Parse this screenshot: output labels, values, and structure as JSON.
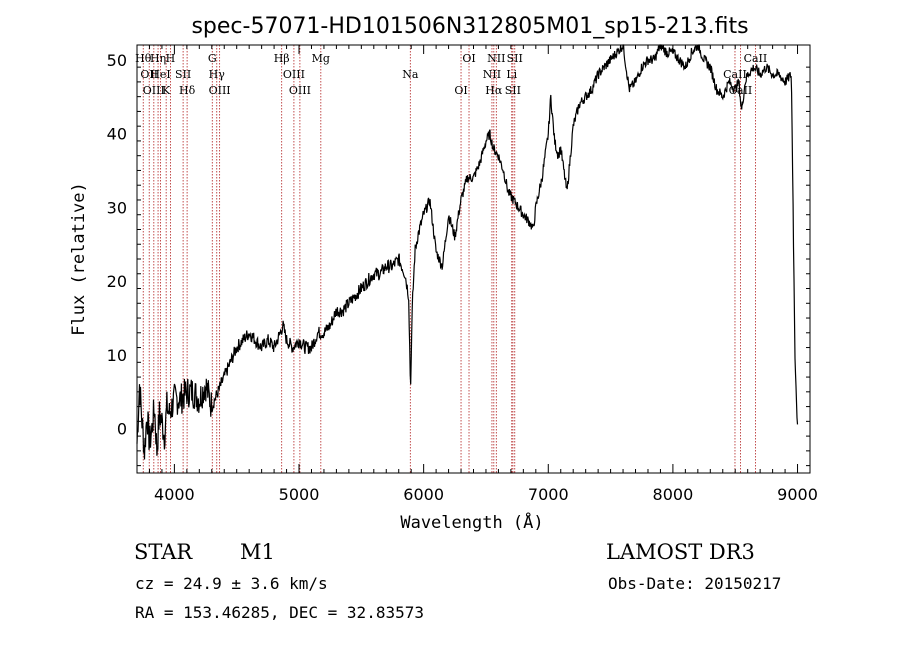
{
  "chart_data": {
    "type": "line",
    "title": "spec-57071-HD101506N312805M01_sp15-213.fits",
    "xlabel": "Wavelength (Å)",
    "ylabel": "Flux (relative)",
    "xlim": [
      3700,
      9100
    ],
    "ylim": [
      -6,
      52
    ],
    "xticks": [
      4000,
      5000,
      6000,
      7000,
      8000,
      9000
    ],
    "yticks": [
      0,
      10,
      20,
      30,
      40,
      50
    ],
    "series": [
      {
        "x": [
          3700,
          3720,
          3740,
          3760,
          3780,
          3800,
          3820,
          3840,
          3860,
          3880,
          3900,
          3920,
          3940,
          3960,
          3980,
          4000,
          4050,
          4100,
          4150,
          4200,
          4250,
          4300,
          4350,
          4400,
          4450,
          4500,
          4550,
          4600,
          4650,
          4700,
          4750,
          4800,
          4850,
          4870,
          4900,
          4950,
          5000,
          5050,
          5100,
          5150,
          5200,
          5250,
          5300,
          5350,
          5400,
          5450,
          5500,
          5550,
          5600,
          5650,
          5700,
          5750,
          5800,
          5850,
          5880,
          5895,
          5900,
          5910,
          5930,
          5950,
          6000,
          6050,
          6100,
          6150,
          6200,
          6250,
          6300,
          6350,
          6400,
          6450,
          6500,
          6530,
          6560,
          6600,
          6640,
          6680,
          6720,
          6760,
          6800,
          6850,
          6880,
          6900,
          6950,
          7000,
          7020,
          7050,
          7080,
          7100,
          7150,
          7200,
          7250,
          7300,
          7350,
          7400,
          7450,
          7500,
          7550,
          7600,
          7650,
          7700,
          7750,
          7800,
          7850,
          7900,
          7950,
          8000,
          8050,
          8100,
          8150,
          8200,
          8250,
          8300,
          8350,
          8400,
          8450,
          8500,
          8530,
          8550,
          8580,
          8600,
          8650,
          8700,
          8750,
          8800,
          8850,
          8900,
          8950,
          8980,
          9000
        ],
        "y": [
          -2,
          6,
          1,
          -3,
          2,
          -2,
          0,
          3,
          -3,
          2,
          1,
          -1,
          3,
          2,
          3,
          4,
          4,
          5,
          5,
          4,
          6,
          3,
          5,
          7,
          9,
          11,
          12,
          13,
          12,
          11,
          12,
          11,
          13,
          14,
          12,
          11,
          12,
          11,
          11,
          13,
          13,
          14,
          16,
          16,
          17,
          18,
          19,
          20,
          21,
          21,
          22,
          22,
          23,
          21,
          18,
          5,
          10,
          17,
          24,
          26,
          29,
          31,
          24,
          22,
          29,
          26,
          31,
          34,
          34,
          36,
          39,
          40,
          38,
          37,
          35,
          32,
          31,
          30,
          29,
          28,
          27,
          30,
          34,
          40,
          45,
          39,
          37,
          38,
          32,
          41,
          44,
          45,
          46,
          48,
          49,
          50,
          51,
          52,
          46,
          47,
          49,
          50,
          50,
          52,
          51,
          51,
          50,
          49,
          51,
          52,
          50,
          49,
          46,
          45,
          47,
          46,
          47,
          43,
          47,
          48,
          49,
          48,
          49,
          48,
          48,
          47,
          48,
          10,
          0
        ]
      }
    ],
    "lines": [
      {
        "x": 3750,
        "label": "Hθ"
      },
      {
        "x": 3798,
        "label": "OII"
      },
      {
        "x": 3835,
        "label": "OIII"
      },
      {
        "x": 3869,
        "label": "Hη"
      },
      {
        "x": 3889,
        "label": "HeI"
      },
      {
        "x": 3934,
        "label": "K"
      },
      {
        "x": 3968,
        "label": "H"
      },
      {
        "x": 4070,
        "label": "SII"
      },
      {
        "x": 4102,
        "label": "Hδ"
      },
      {
        "x": 4304,
        "label": "G"
      },
      {
        "x": 4340,
        "label": "Hγ"
      },
      {
        "x": 4363,
        "label": "OIII"
      },
      {
        "x": 4861,
        "label": "Hβ"
      },
      {
        "x": 4959,
        "label": "OIII"
      },
      {
        "x": 5007,
        "label": "OIII"
      },
      {
        "x": 5175,
        "label": "Mg"
      },
      {
        "x": 5893,
        "label": "Na"
      },
      {
        "x": 6300,
        "label": "OI"
      },
      {
        "x": 6364,
        "label": "OI"
      },
      {
        "x": 6548,
        "label": "NII"
      },
      {
        "x": 6563,
        "label": "Hα"
      },
      {
        "x": 6583,
        "label": "NII"
      },
      {
        "x": 6707,
        "label": "Li"
      },
      {
        "x": 6716,
        "label": "SII"
      },
      {
        "x": 6731,
        "label": "SII"
      },
      {
        "x": 8498,
        "label": "CaII"
      },
      {
        "x": 8542,
        "label": "CaII"
      },
      {
        "x": 8662,
        "label": "CaII"
      }
    ],
    "legend": "none",
    "grid": false
  },
  "info": {
    "class": "STAR",
    "subclass": "M1",
    "survey": "LAMOST DR3",
    "cz": "cz = 24.9 ± 3.6 km/s",
    "obs_date": "Obs-Date: 20150217",
    "coords": "RA = 153.46285, DEC =  32.83573"
  }
}
